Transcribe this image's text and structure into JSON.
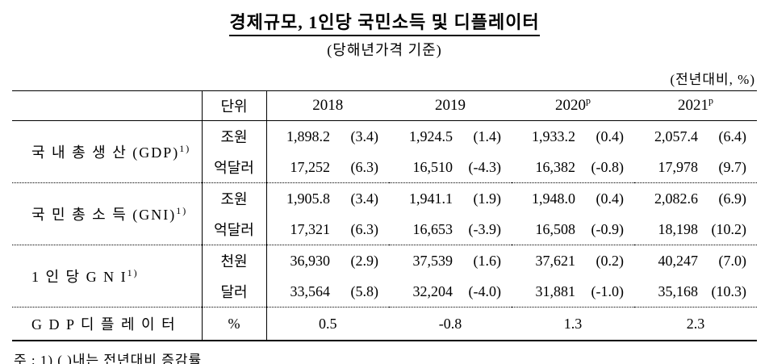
{
  "title": "경제규모, 1인당 국민소득 및 디플레이터",
  "subtitle": "(당해년가격 기준)",
  "unit_note": "(전년대비, %)",
  "footnote": "주 : 1) (  )내는 전년대비 증감률",
  "table": {
    "unit_header": "단위",
    "years": [
      {
        "label": "2018",
        "sup": ""
      },
      {
        "label": "2019",
        "sup": ""
      },
      {
        "label": "2020",
        "sup": "p"
      },
      {
        "label": "2021",
        "sup": "p"
      }
    ],
    "groups": [
      {
        "label": "국 내 총 생 산 (GDP)",
        "sup": "1)",
        "rows": [
          {
            "unit": "조원",
            "cells": [
              {
                "v": "1,898.2",
                "c": "(3.4)"
              },
              {
                "v": "1,924.5",
                "c": "(1.4)"
              },
              {
                "v": "1,933.2",
                "c": "(0.4)"
              },
              {
                "v": "2,057.4",
                "c": "(6.4)"
              }
            ]
          },
          {
            "unit": "억달러",
            "cells": [
              {
                "v": "17,252",
                "c": "(6.3)"
              },
              {
                "v": "16,510",
                "c": "(-4.3)"
              },
              {
                "v": "16,382",
                "c": "(-0.8)"
              },
              {
                "v": "17,978",
                "c": "(9.7)"
              }
            ]
          }
        ]
      },
      {
        "label": "국 민 총 소 득 (GNI)",
        "sup": "1)",
        "rows": [
          {
            "unit": "조원",
            "cells": [
              {
                "v": "1,905.8",
                "c": "(3.4)"
              },
              {
                "v": "1,941.1",
                "c": "(1.9)"
              },
              {
                "v": "1,948.0",
                "c": "(0.4)"
              },
              {
                "v": "2,082.6",
                "c": "(6.9)"
              }
            ]
          },
          {
            "unit": "억달러",
            "cells": [
              {
                "v": "17,321",
                "c": "(6.3)"
              },
              {
                "v": "16,653",
                "c": "(-3.9)"
              },
              {
                "v": "16,508",
                "c": "(-0.9)"
              },
              {
                "v": "18,198",
                "c": "(10.2)"
              }
            ]
          }
        ]
      },
      {
        "label": "1 인 당  G N I",
        "sup": "1)",
        "rows": [
          {
            "unit": "천원",
            "cells": [
              {
                "v": "36,930",
                "c": "(2.9)"
              },
              {
                "v": "37,539",
                "c": "(1.6)"
              },
              {
                "v": "37,621",
                "c": "(0.2)"
              },
              {
                "v": "40,247",
                "c": "(7.0)"
              }
            ]
          },
          {
            "unit": "달러",
            "cells": [
              {
                "v": "33,564",
                "c": "(5.8)"
              },
              {
                "v": "32,204",
                "c": "(-4.0)"
              },
              {
                "v": "31,881",
                "c": "(-1.0)"
              },
              {
                "v": "35,168",
                "c": "(10.3)"
              }
            ]
          }
        ]
      }
    ],
    "deflator": {
      "label": "G D P 디 플 레 이 터",
      "unit": "%",
      "values": [
        "0.5",
        "-0.8",
        "1.3",
        "2.3"
      ]
    }
  }
}
